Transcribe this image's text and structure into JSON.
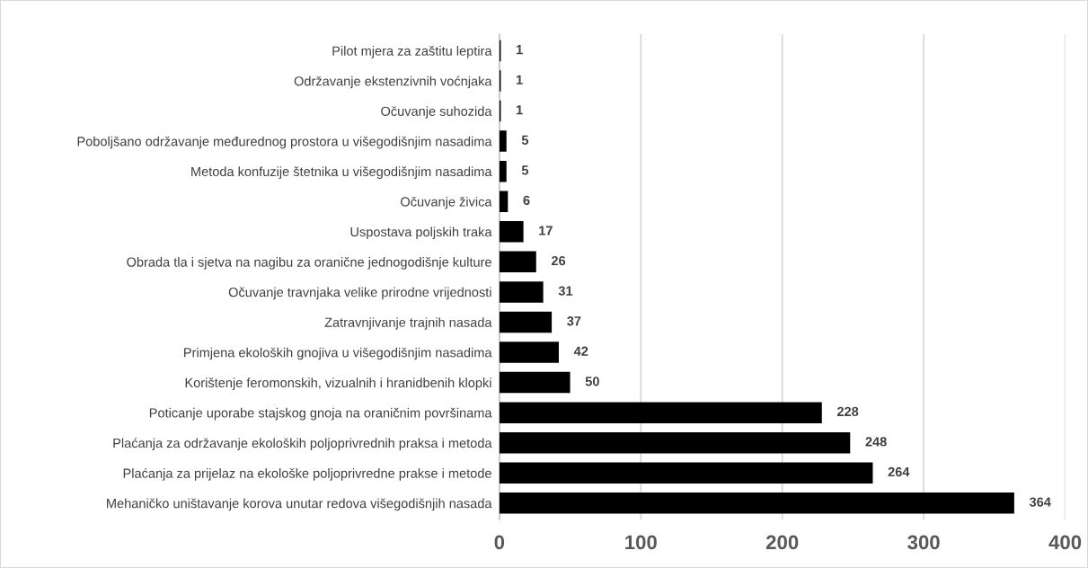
{
  "chart_data": {
    "type": "bar",
    "orientation": "horizontal",
    "categories": [
      "Pilot mjera za zaštitu leptira",
      "Održavanje ekstenzivnih voćnjaka",
      "Očuvanje suhozida",
      "Poboljšano održavanje međurednog prostora u višegodišnjim nasadima",
      "Metoda konfuzije štetnika u višegodišnjim nasadima",
      "Očuvanje živica",
      "Uspostava poljskih traka",
      "Obrada tla i sjetva na nagibu za oranične jednogodišnje kulture",
      "Očuvanje travnjaka velike prirodne vrijednosti",
      "Zatravnjivanje trajnih nasada",
      "Primjena ekoloških gnojiva u višegodišnjim nasadima",
      "Korištenje feromonskih, vizualnih i hranidbenih klopki",
      "Poticanje uporabe stajskog gnoja na oraničnim površinama",
      "Plaćanja za održavanje ekoloških poljoprivrednih praksa i metoda",
      "Plaćanja za prijelaz na ekološke poljoprivredne prakse i metode",
      "Mehaničko uništavanje korova unutar redova višegodišnjih nasada"
    ],
    "values": [
      1,
      1,
      1,
      5,
      5,
      6,
      17,
      26,
      31,
      37,
      42,
      50,
      228,
      248,
      264,
      364
    ],
    "color": "#000000",
    "xlim": [
      0,
      400
    ],
    "xticks": [
      0,
      100,
      200,
      300,
      400
    ],
    "grid": "x",
    "data_labels": true,
    "legend": false
  }
}
